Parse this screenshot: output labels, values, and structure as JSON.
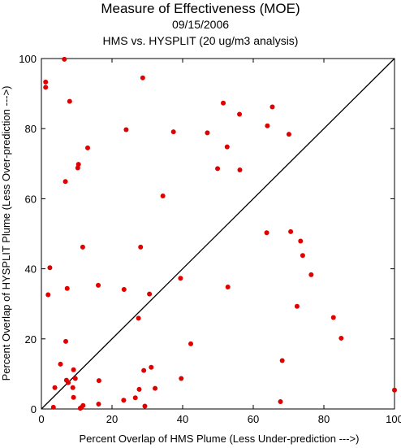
{
  "chart_data": {
    "type": "scatter",
    "title": "Measure of Effectiveness (MOE)",
    "subtitle": "09/15/2006",
    "subtitle2": "HMS vs. HYSPLIT  (20 ug/m3 analysis)",
    "xlabel": "Percent Overlap of HMS Plume (Less Under-prediction --->)",
    "ylabel": "Percent Overlap of HYSPLIT Plume (Less Over-prediction --->)",
    "xlim": [
      0,
      100
    ],
    "ylim": [
      0,
      100
    ],
    "x_ticks": [
      "0",
      "20",
      "40",
      "60",
      "80",
      "100"
    ],
    "y_ticks": [
      "0",
      "20",
      "40",
      "60",
      "80",
      "100"
    ],
    "reference_line": "y = x",
    "grid": false,
    "point_color": "#e00000",
    "points": [
      [
        6.5,
        99.8
      ],
      [
        1.2,
        93.3
      ],
      [
        1.2,
        91.8
      ],
      [
        28.7,
        94.5
      ],
      [
        8.0,
        87.8
      ],
      [
        51.5,
        87.3
      ],
      [
        65.4,
        86.2
      ],
      [
        56.1,
        84.1
      ],
      [
        64.0,
        80.8
      ],
      [
        24.0,
        79.7
      ],
      [
        37.4,
        79.1
      ],
      [
        47.0,
        78.8
      ],
      [
        70.1,
        78.4
      ],
      [
        52.6,
        74.8
      ],
      [
        13.1,
        74.5
      ],
      [
        10.5,
        69.8
      ],
      [
        10.3,
        68.8
      ],
      [
        49.9,
        68.6
      ],
      [
        56.2,
        68.2
      ],
      [
        6.8,
        64.9
      ],
      [
        34.4,
        60.8
      ],
      [
        63.8,
        50.3
      ],
      [
        70.6,
        50.6
      ],
      [
        73.4,
        47.9
      ],
      [
        11.7,
        46.2
      ],
      [
        28.1,
        46.2
      ],
      [
        74.0,
        43.8
      ],
      [
        2.4,
        40.3
      ],
      [
        76.4,
        38.3
      ],
      [
        39.4,
        37.3
      ],
      [
        16.1,
        35.3
      ],
      [
        52.8,
        34.8
      ],
      [
        7.3,
        34.4
      ],
      [
        23.4,
        34.1
      ],
      [
        1.9,
        32.6
      ],
      [
        30.6,
        32.8
      ],
      [
        72.4,
        29.3
      ],
      [
        27.5,
        25.9
      ],
      [
        82.7,
        26.1
      ],
      [
        6.9,
        19.3
      ],
      [
        84.9,
        20.2
      ],
      [
        42.3,
        18.6
      ],
      [
        68.2,
        13.8
      ],
      [
        5.4,
        12.8
      ],
      [
        31.1,
        11.9
      ],
      [
        9.1,
        11.2
      ],
      [
        29.0,
        11.0
      ],
      [
        9.6,
        8.7
      ],
      [
        16.3,
        8.1
      ],
      [
        7.1,
        8.2
      ],
      [
        39.6,
        8.7
      ],
      [
        7.6,
        7.5
      ],
      [
        3.8,
        6.1
      ],
      [
        8.9,
        6.1
      ],
      [
        27.7,
        5.6
      ],
      [
        32.2,
        5.9
      ],
      [
        100.0,
        5.4
      ],
      [
        9.1,
        3.3
      ],
      [
        26.6,
        3.2
      ],
      [
        23.3,
        2.5
      ],
      [
        67.7,
        2.1
      ],
      [
        16.2,
        1.4
      ],
      [
        11.8,
        1.0
      ],
      [
        29.3,
        0.8
      ],
      [
        3.4,
        0.5
      ],
      [
        11.3,
        0.4
      ],
      [
        11.0,
        0.2
      ]
    ]
  }
}
